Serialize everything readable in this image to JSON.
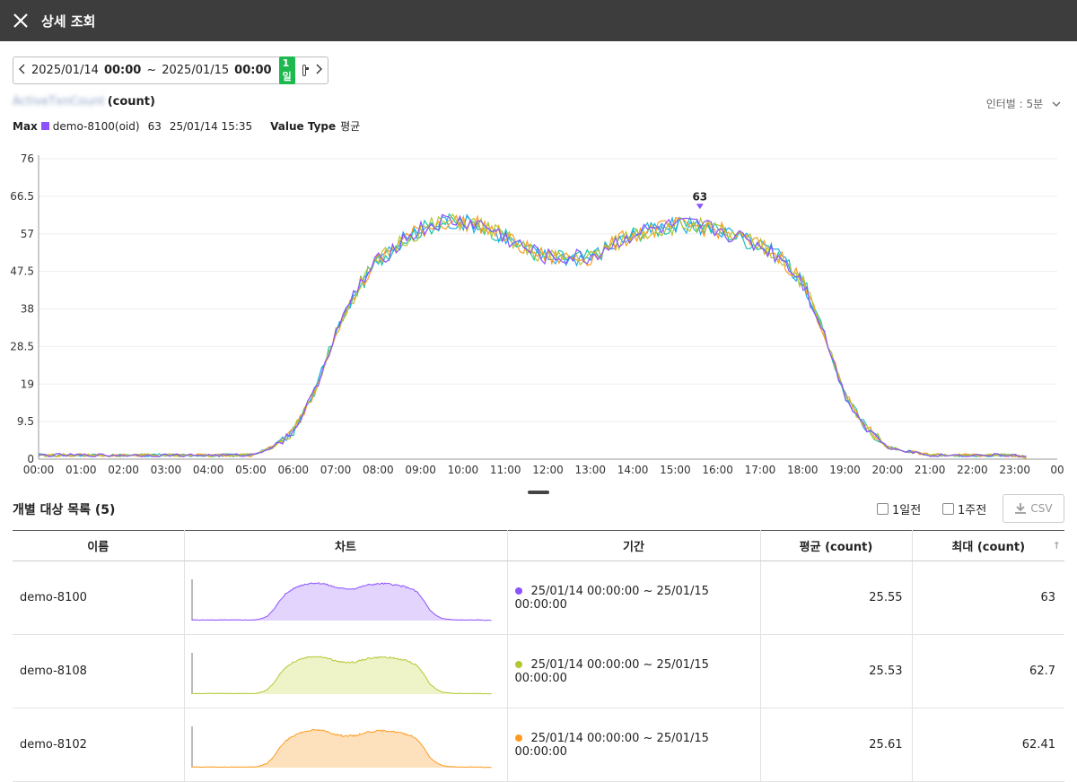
{
  "header": {
    "title": "상세 조회"
  },
  "datebar": {
    "start_date": "2025/01/14",
    "start_time": "00:00",
    "tilde": "~",
    "end_date": "2025/01/15",
    "end_time": "00:00",
    "range_badge": "1일"
  },
  "chart_header": {
    "metric_blurred": "ActiveTxnCount",
    "unit": "(count)",
    "interval": "인터벌 : 5분"
  },
  "max_info": {
    "label": "Max",
    "instance": "demo-8100(oid)",
    "value": "63",
    "time": "25/01/14 15:35",
    "value_type_label": "Value Type",
    "value_type": "평균",
    "color": "#8c52ff"
  },
  "chart_data": {
    "type": "line",
    "y_ticks": [
      "76",
      "66.5",
      "57",
      "47.5",
      "38",
      "28.5",
      "19",
      "9.5",
      "0"
    ],
    "ylim": [
      0,
      76
    ],
    "x_ticks": [
      "00:00",
      "01:00",
      "02:00",
      "03:00",
      "04:00",
      "05:00",
      "06:00",
      "07:00",
      "08:00",
      "09:00",
      "10:00",
      "11:00",
      "12:00",
      "13:00",
      "14:00",
      "15:00",
      "16:00",
      "17:00",
      "18:00",
      "19:00",
      "20:00",
      "21:00",
      "22:00",
      "23:00",
      "00"
    ],
    "x_hours": [
      0,
      1,
      2,
      3,
      4,
      5,
      6,
      7,
      8,
      9,
      10,
      11,
      12,
      13,
      14,
      15,
      16,
      17,
      18,
      19,
      20,
      21,
      22,
      23,
      24
    ],
    "profile_hours": [
      0,
      1,
      2,
      3,
      4,
      5,
      5.5,
      6,
      6.5,
      7,
      7.5,
      8,
      8.5,
      9,
      9.5,
      10,
      10.5,
      11,
      11.5,
      12,
      12.5,
      13,
      13.5,
      14,
      14.5,
      15,
      15.5,
      16,
      16.5,
      17,
      17.5,
      18,
      18.5,
      19,
      19.5,
      20,
      20.5,
      21,
      22,
      23,
      23.3
    ],
    "profile_values": [
      1,
      1,
      1,
      1,
      1,
      1,
      3,
      7,
      17,
      32,
      43,
      50,
      55,
      58,
      60,
      60,
      59,
      56,
      53,
      51,
      51,
      51,
      54,
      57,
      58,
      59,
      59,
      58,
      56,
      54,
      51,
      45,
      32,
      16,
      8,
      3,
      2,
      1,
      1,
      1,
      0.5
    ],
    "peak_annotation": {
      "x": 15.58,
      "y": 63,
      "label": "63"
    },
    "series": [
      {
        "name": "demo-8100",
        "color": "#8c52ff"
      },
      {
        "name": "demo-8108",
        "color": "#b5c633"
      },
      {
        "name": "demo-8102",
        "color": "#ff9a1f"
      },
      {
        "name": "",
        "color": "#1eaaf1"
      },
      {
        "name": "",
        "color": "#1bc4a9"
      }
    ]
  },
  "list": {
    "title": "개별 대상 목록 (5)",
    "prev_day": "1일전",
    "prev_week": "1주전",
    "csv": "CSV",
    "columns": [
      "이름",
      "차트",
      "기간",
      "평균 (count)",
      "최대 (count)"
    ],
    "rows": [
      {
        "name": "demo-8100",
        "period": "25/01/14 00:00:00 ~ 25/01/15 00:00:00",
        "avg": "25.55",
        "max": "63",
        "color": "#8c52ff",
        "fill": "#e2d4fd"
      },
      {
        "name": "demo-8108",
        "period": "25/01/14 00:00:00 ~ 25/01/15 00:00:00",
        "avg": "25.53",
        "max": "62.7",
        "color": "#b5c633",
        "fill": "#eef4c8"
      },
      {
        "name": "demo-8102",
        "period": "25/01/14 00:00:00 ~ 25/01/15 00:00:00",
        "avg": "25.61",
        "max": "62.41",
        "color": "#ff9a1f",
        "fill": "#fde1bd"
      }
    ]
  }
}
